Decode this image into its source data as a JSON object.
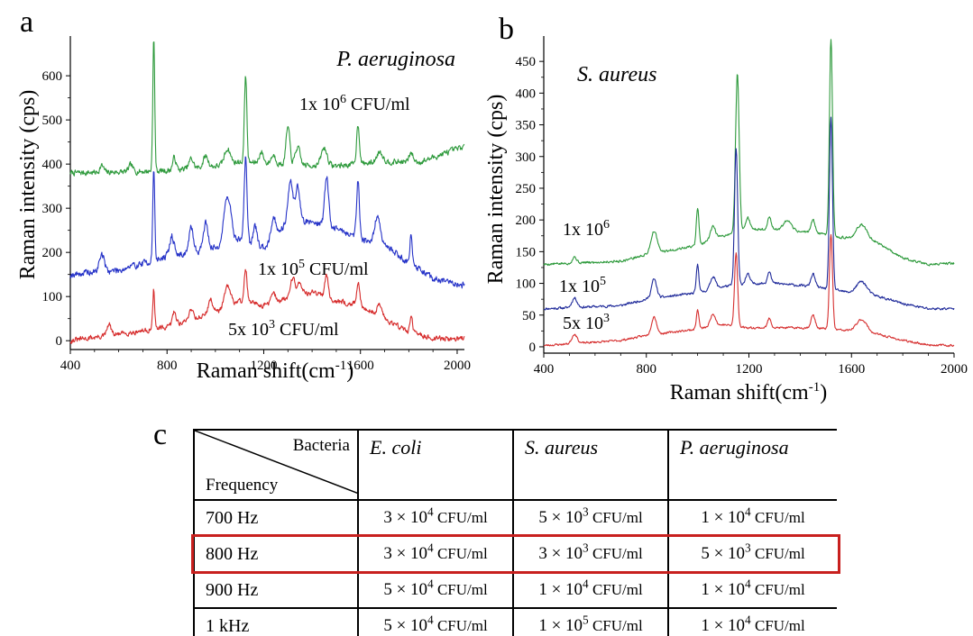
{
  "panels": {
    "a": "a",
    "b": "b",
    "c": "c"
  },
  "chart_data": [
    {
      "type": "line",
      "panel": "a",
      "title": "P. aeruginosa",
      "xlabel": "Raman shift(cm",
      "xlabel_sup": "-1",
      "xlabel_tail": ")",
      "ylabel": "Raman  intensity (cps)",
      "xlim": [
        400,
        2030
      ],
      "ylim": [
        -20,
        690
      ],
      "x_ticks": [
        400,
        800,
        1200,
        1600,
        2000
      ],
      "y_ticks": [
        0,
        100,
        200,
        300,
        400,
        500,
        600
      ],
      "grid": false,
      "series": [
        {
          "label_base": "1x 10",
          "label_exp": "6",
          "label_tail": " CFU/ml",
          "color": "#2e9a3c",
          "baseline": [
            [
              400,
              380
            ],
            [
              600,
              382
            ],
            [
              800,
              385
            ],
            [
              1000,
              395
            ],
            [
              1100,
              405
            ],
            [
              1300,
              398
            ],
            [
              1500,
              396
            ],
            [
              1700,
              405
            ],
            [
              1850,
              405
            ],
            [
              2030,
              440
            ]
          ],
          "peaks": [
            [
              530,
              15,
              8
            ],
            [
              650,
              15,
              8
            ],
            [
              745,
              300,
              4
            ],
            [
              830,
              28,
              7
            ],
            [
              900,
              22,
              9
            ],
            [
              960,
              25,
              10
            ],
            [
              1050,
              35,
              12
            ],
            [
              1125,
              200,
              5
            ],
            [
              1190,
              25,
              9
            ],
            [
              1240,
              20,
              10
            ],
            [
              1300,
              85,
              8
            ],
            [
              1340,
              40,
              10
            ],
            [
              1450,
              40,
              12
            ],
            [
              1590,
              90,
              6
            ],
            [
              1680,
              25,
              12
            ],
            [
              1810,
              20,
              8
            ]
          ],
          "noise": 10,
          "seed": 7
        },
        {
          "label_base": "1x 10",
          "label_exp": "5",
          "label_tail": " CFU/ml",
          "color": "#2633c8",
          "baseline": [
            [
              400,
              150
            ],
            [
              600,
              160
            ],
            [
              800,
              190
            ],
            [
              1000,
              210
            ],
            [
              1100,
              230
            ],
            [
              1200,
              210
            ],
            [
              1300,
              270
            ],
            [
              1400,
              270
            ],
            [
              1500,
              255
            ],
            [
              1600,
              230
            ],
            [
              1700,
              220
            ],
            [
              1800,
              175
            ],
            [
              1900,
              140
            ],
            [
              2030,
              125
            ]
          ],
          "peaks": [
            [
              530,
              40,
              10
            ],
            [
              745,
              210,
              4
            ],
            [
              820,
              45,
              9
            ],
            [
              900,
              55,
              9
            ],
            [
              960,
              60,
              10
            ],
            [
              1050,
              110,
              14
            ],
            [
              1125,
              190,
              6
            ],
            [
              1165,
              40,
              8
            ],
            [
              1240,
              45,
              10
            ],
            [
              1310,
              90,
              10
            ],
            [
              1340,
              80,
              9
            ],
            [
              1460,
              110,
              8
            ],
            [
              1590,
              130,
              6
            ],
            [
              1670,
              60,
              10
            ],
            [
              1810,
              70,
              5
            ]
          ],
          "noise": 12,
          "seed": 19
        },
        {
          "label_base": "5x 10",
          "label_exp": "3",
          "label_tail": " CFU/ml",
          "color": "#d62b2b",
          "baseline": [
            [
              400,
              0
            ],
            [
              600,
              15
            ],
            [
              800,
              30
            ],
            [
              1000,
              65
            ],
            [
              1100,
              90
            ],
            [
              1200,
              80
            ],
            [
              1300,
              95
            ],
            [
              1400,
              110
            ],
            [
              1500,
              90
            ],
            [
              1600,
              80
            ],
            [
              1700,
              50
            ],
            [
              1800,
              20
            ],
            [
              1900,
              5
            ],
            [
              2030,
              5
            ]
          ],
          "peaks": [
            [
              560,
              25,
              8
            ],
            [
              745,
              90,
              4
            ],
            [
              830,
              30,
              8
            ],
            [
              900,
              25,
              9
            ],
            [
              980,
              30,
              10
            ],
            [
              1050,
              45,
              12
            ],
            [
              1125,
              75,
              6
            ],
            [
              1240,
              20,
              10
            ],
            [
              1320,
              45,
              10
            ],
            [
              1350,
              30,
              9
            ],
            [
              1460,
              55,
              7
            ],
            [
              1590,
              50,
              6
            ],
            [
              1680,
              25,
              10
            ],
            [
              1810,
              40,
              5
            ]
          ],
          "noise": 9,
          "seed": 31
        }
      ]
    },
    {
      "type": "line",
      "panel": "b",
      "title": "S. aureus",
      "xlabel": "Raman shift(cm",
      "xlabel_sup": "-1",
      "xlabel_tail": ")",
      "ylabel": "Raman  intensity (cps)",
      "xlim": [
        400,
        2000
      ],
      "ylim": [
        -10,
        490
      ],
      "x_ticks": [
        400,
        800,
        1200,
        1600,
        2000
      ],
      "y_ticks": [
        0,
        50,
        100,
        150,
        200,
        250,
        300,
        350,
        400,
        450
      ],
      "grid": false,
      "series": [
        {
          "label_base": "1x 10",
          "label_exp": "6",
          "label_tail": "",
          "color": "#2e9a3c",
          "baseline": [
            [
              400,
              130
            ],
            [
              700,
              135
            ],
            [
              800,
              145
            ],
            [
              1000,
              160
            ],
            [
              1100,
              175
            ],
            [
              1200,
              185
            ],
            [
              1300,
              185
            ],
            [
              1450,
              180
            ],
            [
              1600,
              170
            ],
            [
              1700,
              165
            ],
            [
              1800,
              140
            ],
            [
              1900,
              130
            ],
            [
              2000,
              132
            ]
          ],
          "peaks": [
            [
              520,
              10,
              8
            ],
            [
              830,
              35,
              12
            ],
            [
              1000,
              60,
              5
            ],
            [
              1060,
              20,
              10
            ],
            [
              1155,
              250,
              7
            ],
            [
              1195,
              20,
              8
            ],
            [
              1280,
              20,
              7
            ],
            [
              1350,
              15,
              15
            ],
            [
              1450,
              20,
              8
            ],
            [
              1520,
              310,
              6
            ],
            [
              1640,
              25,
              20
            ]
          ],
          "noise": 3,
          "seed": 5
        },
        {
          "label_base": "1x 10",
          "label_exp": "5",
          "label_tail": "",
          "color": "#1f2a9a",
          "baseline": [
            [
              400,
              60
            ],
            [
              700,
              65
            ],
            [
              800,
              75
            ],
            [
              1000,
              85
            ],
            [
              1100,
              95
            ],
            [
              1200,
              100
            ],
            [
              1300,
              100
            ],
            [
              1450,
              95
            ],
            [
              1600,
              85
            ],
            [
              1700,
              80
            ],
            [
              1800,
              68
            ],
            [
              1900,
              60
            ],
            [
              2000,
              60
            ]
          ],
          "peaks": [
            [
              520,
              15,
              10
            ],
            [
              830,
              30,
              10
            ],
            [
              1000,
              45,
              5
            ],
            [
              1060,
              20,
              10
            ],
            [
              1150,
              215,
              6
            ],
            [
              1195,
              15,
              8
            ],
            [
              1280,
              20,
              7
            ],
            [
              1450,
              20,
              8
            ],
            [
              1520,
              270,
              6
            ],
            [
              1640,
              20,
              20
            ]
          ],
          "noise": 3,
          "seed": 11
        },
        {
          "label_base": "5x 10",
          "label_exp": "3",
          "label_tail": "",
          "color": "#d63030",
          "baseline": [
            [
              400,
              2
            ],
            [
              700,
              10
            ],
            [
              800,
              18
            ],
            [
              1000,
              28
            ],
            [
              1100,
              35
            ],
            [
              1200,
              30
            ],
            [
              1300,
              30
            ],
            [
              1450,
              30
            ],
            [
              1600,
              25
            ],
            [
              1700,
              20
            ],
            [
              1800,
              10
            ],
            [
              1900,
              3
            ],
            [
              2000,
              2
            ]
          ],
          "peaks": [
            [
              520,
              15,
              10
            ],
            [
              830,
              28,
              10
            ],
            [
              1000,
              30,
              5
            ],
            [
              1060,
              20,
              10
            ],
            [
              1150,
              115,
              6
            ],
            [
              1280,
              15,
              7
            ],
            [
              1450,
              20,
              8
            ],
            [
              1520,
              150,
              6
            ],
            [
              1640,
              20,
              20
            ]
          ],
          "noise": 2.5,
          "seed": 23
        }
      ]
    }
  ],
  "table": {
    "header_bacteria": "Bacteria",
    "header_frequency": "Frequency",
    "columns": [
      "E. coli",
      "S. aureus",
      "P. aeruginosa"
    ],
    "times": "×",
    "unit": "CFU/ml",
    "highlight_color": "#c8201e",
    "highlighted_row": "800 Hz",
    "rows": [
      {
        "frequency": "700 Hz",
        "cells": [
          {
            "m": "3",
            "e": "4"
          },
          {
            "m": "5",
            "e": "3"
          },
          {
            "m": "1",
            "e": "4"
          }
        ]
      },
      {
        "frequency": "800 Hz",
        "cells": [
          {
            "m": "3",
            "e": "4"
          },
          {
            "m": "3",
            "e": "3"
          },
          {
            "m": "5",
            "e": "3"
          }
        ]
      },
      {
        "frequency": "900 Hz",
        "cells": [
          {
            "m": "5",
            "e": "4"
          },
          {
            "m": "1",
            "e": "4"
          },
          {
            "m": "1",
            "e": "4"
          }
        ]
      },
      {
        "frequency": "1 kHz",
        "cells": [
          {
            "m": "5",
            "e": "4"
          },
          {
            "m": "1",
            "e": "5"
          },
          {
            "m": "1",
            "e": "4"
          }
        ]
      }
    ]
  }
}
